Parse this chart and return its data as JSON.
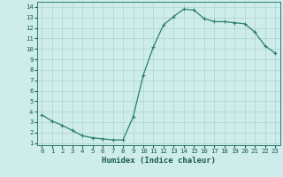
{
  "x": [
    0,
    1,
    2,
    3,
    4,
    5,
    6,
    7,
    8,
    9,
    10,
    11,
    12,
    13,
    14,
    15,
    16,
    17,
    18,
    19,
    20,
    21,
    22,
    23
  ],
  "y": [
    3.7,
    3.1,
    2.7,
    2.2,
    1.7,
    1.5,
    1.4,
    1.3,
    1.3,
    3.5,
    7.5,
    10.2,
    12.3,
    13.1,
    13.8,
    13.7,
    12.9,
    12.6,
    12.6,
    12.5,
    12.4,
    11.6,
    10.3,
    9.6
  ],
  "line_color": "#2e7d6e",
  "marker": "+",
  "marker_size": 3,
  "marker_linewidth": 0.8,
  "line_width": 0.9,
  "xlabel": "Humidex (Indice chaleur)",
  "bg_color": "#cdecea",
  "grid_color": "#acd4d2",
  "xlim": [
    -0.5,
    23.5
  ],
  "ylim": [
    0.8,
    14.5
  ],
  "xticks": [
    0,
    1,
    2,
    3,
    4,
    5,
    6,
    7,
    8,
    9,
    10,
    11,
    12,
    13,
    14,
    15,
    16,
    17,
    18,
    19,
    20,
    21,
    22,
    23
  ],
  "yticks": [
    1,
    2,
    3,
    4,
    5,
    6,
    7,
    8,
    9,
    10,
    11,
    12,
    13,
    14
  ],
  "tick_fontsize": 5.2,
  "label_fontsize": 6.5,
  "text_color": "#1a5a54",
  "spine_color": "#2e7d6e"
}
